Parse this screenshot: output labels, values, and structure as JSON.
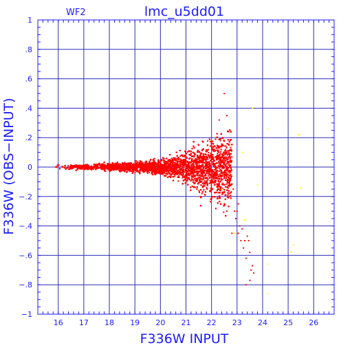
{
  "chart_data": {
    "type": "scatter",
    "title": "lmc_u5dd01",
    "panel_label": "WF2",
    "xlabel": "F336W INPUT",
    "ylabel": "F336W (OBS−INPUT)",
    "xlim": [
      15.2,
      26.8
    ],
    "ylim": [
      -1,
      1
    ],
    "xticks": [
      16,
      17,
      18,
      19,
      20,
      21,
      22,
      23,
      24,
      25,
      26
    ],
    "yticks": [
      -1,
      -0.8,
      -0.6,
      -0.4,
      -0.2,
      0,
      0.2,
      0.4,
      0.6,
      0.8,
      1
    ],
    "grid": true,
    "colors": {
      "axes": "#1a1aff",
      "grid": "#2a2ab8",
      "points_main": "#ff0000",
      "points_outlier": "#ffff00"
    },
    "series": [
      {
        "color": "#ff0000",
        "envelope": [
          {
            "x": 15.9,
            "spread": 0.012
          },
          {
            "x": 17.0,
            "spread": 0.016
          },
          {
            "x": 18.0,
            "spread": 0.022
          },
          {
            "x": 19.0,
            "spread": 0.03
          },
          {
            "x": 20.0,
            "spread": 0.045
          },
          {
            "x": 20.5,
            "spread": 0.06
          },
          {
            "x": 21.0,
            "spread": 0.09
          },
          {
            "x": 21.5,
            "spread": 0.13
          },
          {
            "x": 22.0,
            "spread": 0.17
          },
          {
            "x": 22.4,
            "spread": 0.2
          },
          {
            "x": 22.8,
            "spread": 0.2
          }
        ],
        "sparse_points": [
          {
            "x": 22.75,
            "y": -0.05
          },
          {
            "x": 22.85,
            "y": -0.15
          },
          {
            "x": 22.9,
            "y": -0.3
          },
          {
            "x": 22.95,
            "y": -0.35
          },
          {
            "x": 23.0,
            "y": -0.3
          },
          {
            "x": 23.05,
            "y": -0.45
          },
          {
            "x": 23.1,
            "y": -0.4
          },
          {
            "x": 23.15,
            "y": -0.5
          },
          {
            "x": 23.2,
            "y": -0.42
          },
          {
            "x": 23.25,
            "y": -0.55
          },
          {
            "x": 23.3,
            "y": -0.5
          },
          {
            "x": 23.35,
            "y": -0.62
          },
          {
            "x": 23.4,
            "y": -0.47
          },
          {
            "x": 23.45,
            "y": -0.5
          },
          {
            "x": 23.5,
            "y": -0.58
          },
          {
            "x": 23.55,
            "y": -0.7
          },
          {
            "x": 23.6,
            "y": -0.67
          },
          {
            "x": 23.65,
            "y": -0.72
          },
          {
            "x": 23.5,
            "y": -0.77
          },
          {
            "x": 23.35,
            "y": -0.8
          },
          {
            "x": 22.6,
            "y": -0.3
          },
          {
            "x": 22.7,
            "y": -0.2
          },
          {
            "x": 22.5,
            "y": -0.25
          },
          {
            "x": 22.5,
            "y": 0.5
          },
          {
            "x": 22.3,
            "y": 0.32
          },
          {
            "x": 22.6,
            "y": 0.35
          },
          {
            "x": 22.8,
            "y": -0.45
          },
          {
            "x": 23.05,
            "y": -0.25
          }
        ]
      },
      {
        "color": "#ffff00",
        "points": [
          {
            "x": 23.6,
            "y": 0.4
          },
          {
            "x": 24.2,
            "y": 0.26
          },
          {
            "x": 25.4,
            "y": 0.22
          },
          {
            "x": 23.8,
            "y": -0.12
          },
          {
            "x": 25.5,
            "y": -0.14
          },
          {
            "x": 25.2,
            "y": -0.53
          },
          {
            "x": 25.1,
            "y": -0.58
          },
          {
            "x": 24.2,
            "y": -0.66
          },
          {
            "x": 24.2,
            "y": -0.86
          },
          {
            "x": 23.3,
            "y": -0.36
          },
          {
            "x": 22.4,
            "y": -0.15
          },
          {
            "x": 22.7,
            "y": -0.05
          },
          {
            "x": 23.2,
            "y": 0.1
          },
          {
            "x": 22.9,
            "y": -0.45
          }
        ]
      }
    ]
  }
}
